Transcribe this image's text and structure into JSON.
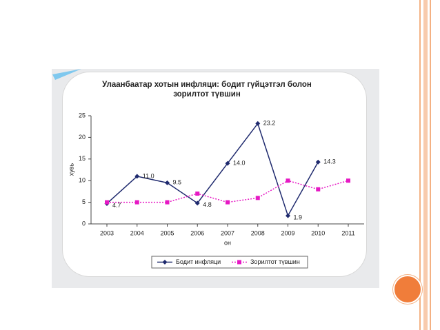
{
  "chart_data": {
    "type": "line",
    "title": "Улаанбаатар хотын инфляци: бодит гүйцэтгэл болон зорилтот түвшин",
    "y_label": "хувь",
    "x_label": "он",
    "categories": [
      "2003",
      "2004",
      "2005",
      "2006",
      "2007",
      "2008",
      "2009",
      "2010",
      "2011"
    ],
    "series": [
      {
        "name": "Бодит инфляци",
        "color": "#1f2a6e",
        "marker": "diamond",
        "dashed": false,
        "values": [
          4.7,
          11.0,
          9.5,
          4.8,
          14.0,
          23.2,
          1.9,
          14.3,
          null
        ],
        "value_labels": [
          "4.7",
          "11.0",
          "9.5",
          "4.8",
          "14.0",
          "23.2",
          "1.9",
          "14.3",
          null
        ]
      },
      {
        "name": "Зорилтот түвшин",
        "color": "#e619c4",
        "marker": "square",
        "dashed": true,
        "values": [
          5,
          5,
          5,
          7,
          5,
          6,
          10,
          8,
          10
        ]
      }
    ],
    "ylim": [
      0,
      25
    ],
    "yticks": [
      0,
      5,
      10,
      15,
      20,
      25
    ],
    "grid": false
  }
}
